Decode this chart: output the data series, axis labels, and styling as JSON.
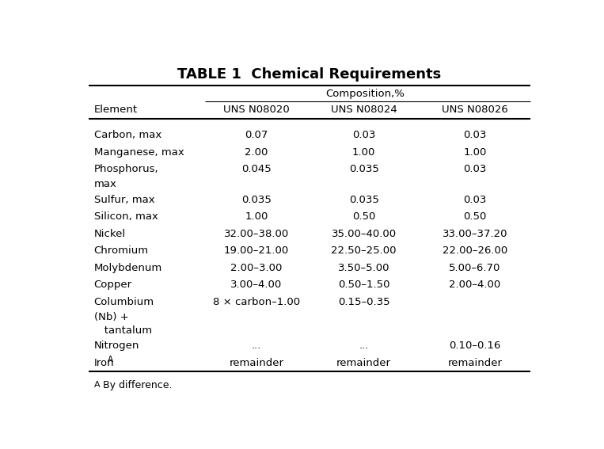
{
  "title": "TABLE 1  Chemical Requirements",
  "composition_header": "Composition,%",
  "col_headers": [
    "Element",
    "UNS N08020",
    "UNS N08024",
    "UNS N08026"
  ],
  "rows": [
    [
      "Carbon, max",
      "0.07",
      "0.03",
      "0.03"
    ],
    [
      "Manganese, max",
      "2.00",
      "1.00",
      "1.00"
    ],
    [
      "Phosphorus,",
      "0.045",
      "0.035",
      "0.03"
    ],
    [
      "max",
      "",
      "",
      ""
    ],
    [
      "Sulfur, max",
      "0.035",
      "0.035",
      "0.03"
    ],
    [
      "Silicon, max",
      "1.00",
      "0.50",
      "0.50"
    ],
    [
      "Nickel",
      "32.00–38.00",
      "35.00–40.00",
      "33.00–37.20"
    ],
    [
      "Chromium",
      "19.00–21.00",
      "22.50–25.00",
      "22.00–26.00"
    ],
    [
      "Molybdenum",
      "2.00–3.00",
      "3.50–5.00",
      "5.00–6.70"
    ],
    [
      "Copper",
      "3.00–4.00",
      "0.50–1.50",
      "2.00–4.00"
    ],
    [
      "Columbium",
      "8 × carbon–1.00",
      "0.15–0.35",
      ""
    ],
    [
      "(Nb) +",
      "",
      "",
      ""
    ],
    [
      "   tantalum",
      "",
      "",
      ""
    ],
    [
      "Nitrogen",
      "...",
      "...",
      "0.10–0.16"
    ],
    [
      "Iron$^A$",
      "remainder",
      "remainder",
      "remainder"
    ]
  ],
  "footnote": "$^A$ By difference.",
  "bg_color": "#ffffff",
  "text_color": "#000000",
  "title_fontsize": 13,
  "header_fontsize": 9.5,
  "cell_fontsize": 9.5,
  "footnote_fontsize": 9
}
